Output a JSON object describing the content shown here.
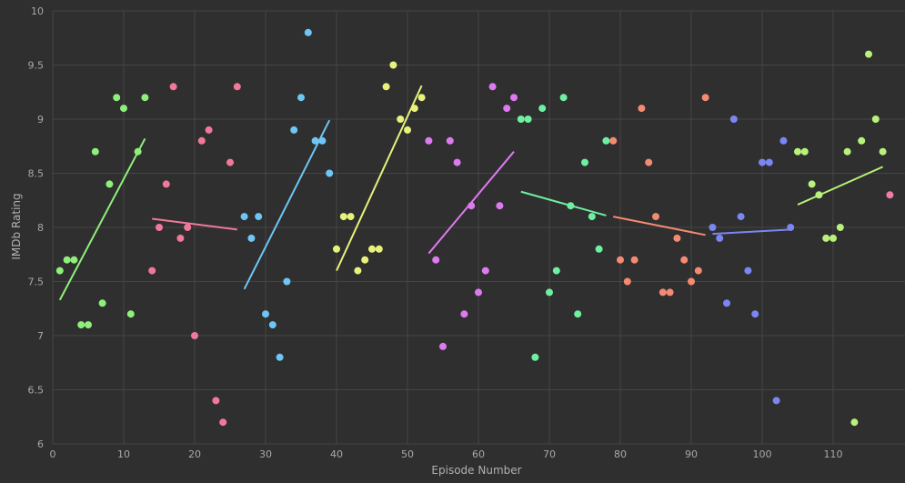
{
  "chart_data": {
    "type": "scatter",
    "xlabel": "Episode Number",
    "ylabel": "IMDb Rating",
    "xlim": [
      0,
      118
    ],
    "ylim": [
      6,
      10
    ],
    "xticks": [
      0,
      10,
      20,
      30,
      40,
      50,
      60,
      70,
      80,
      90,
      100,
      110
    ],
    "yticks": [
      6,
      6.5,
      7,
      7.5,
      8,
      8.5,
      9,
      9.5,
      10
    ],
    "grid": true,
    "legend": "none",
    "series": [
      {
        "color": "#8ef07a",
        "points": [
          [
            1,
            7.6
          ],
          [
            2,
            7.7
          ],
          [
            3,
            7.7
          ],
          [
            4,
            7.1
          ],
          [
            5,
            7.1
          ],
          [
            6,
            8.7
          ],
          [
            7,
            7.3
          ],
          [
            8,
            8.4
          ],
          [
            9,
            9.2
          ],
          [
            10,
            9.1
          ],
          [
            11,
            7.2
          ],
          [
            12,
            8.7
          ],
          [
            13,
            9.2
          ]
        ],
        "trend": [
          [
            1,
            7.33
          ],
          [
            13,
            8.82
          ]
        ]
      },
      {
        "color": "#f2789a",
        "points": [
          [
            14,
            7.6
          ],
          [
            15,
            8.0
          ],
          [
            16,
            8.4
          ],
          [
            17,
            9.3
          ],
          [
            18,
            7.9
          ],
          [
            19,
            8.0
          ],
          [
            20,
            7.0
          ],
          [
            21,
            8.8
          ],
          [
            22,
            8.9
          ],
          [
            23,
            6.4
          ],
          [
            24,
            6.2
          ],
          [
            25,
            8.6
          ],
          [
            26,
            9.3
          ]
        ],
        "trend": [
          [
            14,
            8.08
          ],
          [
            26,
            7.98
          ]
        ]
      },
      {
        "color": "#6ec6f5",
        "points": [
          [
            27,
            8.1
          ],
          [
            28,
            7.9
          ],
          [
            29,
            8.1
          ],
          [
            30,
            7.2
          ],
          [
            31,
            7.1
          ],
          [
            32,
            6.8
          ],
          [
            33,
            7.5
          ],
          [
            34,
            8.9
          ],
          [
            35,
            9.2
          ],
          [
            36,
            9.8
          ],
          [
            37,
            8.8
          ],
          [
            38,
            8.8
          ],
          [
            39,
            8.5
          ]
        ],
        "trend": [
          [
            27,
            7.43
          ],
          [
            39,
            8.99
          ]
        ]
      },
      {
        "color": "#e8f27a",
        "points": [
          [
            40,
            7.8
          ],
          [
            41,
            8.1
          ],
          [
            42,
            8.1
          ],
          [
            43,
            7.6
          ],
          [
            44,
            7.7
          ],
          [
            45,
            7.8
          ],
          [
            46,
            7.8
          ],
          [
            47,
            9.3
          ],
          [
            48,
            9.5
          ],
          [
            49,
            9.0
          ],
          [
            50,
            8.9
          ],
          [
            51,
            9.1
          ],
          [
            52,
            9.2
          ]
        ],
        "trend": [
          [
            40,
            7.6
          ],
          [
            52,
            9.31
          ]
        ]
      },
      {
        "color": "#de7af0",
        "points": [
          [
            53,
            8.8
          ],
          [
            54,
            7.7
          ],
          [
            55,
            6.9
          ],
          [
            56,
            8.8
          ],
          [
            57,
            8.6
          ],
          [
            58,
            7.2
          ],
          [
            59,
            8.2
          ],
          [
            60,
            7.4
          ],
          [
            61,
            7.6
          ],
          [
            62,
            9.3
          ],
          [
            63,
            8.2
          ],
          [
            64,
            9.1
          ],
          [
            65,
            9.2
          ]
        ],
        "trend": [
          [
            53,
            7.76
          ],
          [
            65,
            8.7
          ]
        ]
      },
      {
        "color": "#6ef0a0",
        "points": [
          [
            66,
            9.0
          ],
          [
            67,
            9.0
          ],
          [
            68,
            6.8
          ],
          [
            69,
            9.1
          ],
          [
            70,
            7.4
          ],
          [
            71,
            7.6
          ],
          [
            72,
            9.2
          ],
          [
            73,
            8.2
          ],
          [
            74,
            7.2
          ],
          [
            75,
            8.6
          ],
          [
            76,
            8.1
          ],
          [
            77,
            7.8
          ],
          [
            78,
            8.8
          ]
        ],
        "trend": [
          [
            66,
            8.33
          ],
          [
            78,
            8.11
          ]
        ]
      },
      {
        "color": "#f58a72",
        "points": [
          [
            79,
            8.8
          ],
          [
            80,
            7.7
          ],
          [
            81,
            7.5
          ],
          [
            82,
            7.7
          ],
          [
            83,
            9.1
          ],
          [
            84,
            8.6
          ],
          [
            85,
            8.1
          ],
          [
            86,
            7.4
          ],
          [
            87,
            7.4
          ],
          [
            88,
            7.9
          ],
          [
            89,
            7.7
          ],
          [
            90,
            7.5
          ],
          [
            91,
            7.6
          ],
          [
            92,
            9.2
          ]
        ],
        "trend": [
          [
            79,
            8.1
          ],
          [
            92,
            7.93
          ]
        ]
      },
      {
        "color": "#7a86f2",
        "points": [
          [
            93,
            8.0
          ],
          [
            94,
            7.9
          ],
          [
            95,
            7.3
          ],
          [
            96,
            9.0
          ],
          [
            97,
            8.1
          ],
          [
            98,
            7.6
          ],
          [
            99,
            7.2
          ],
          [
            100,
            8.6
          ],
          [
            101,
            8.6
          ],
          [
            102,
            6.4
          ],
          [
            103,
            8.8
          ],
          [
            104,
            8.0
          ]
        ],
        "trend": [
          [
            93,
            7.94
          ],
          [
            104,
            7.98
          ]
        ]
      },
      {
        "color": "#b8f27a",
        "points": [
          [
            105,
            8.7
          ],
          [
            106,
            8.7
          ],
          [
            107,
            8.4
          ],
          [
            108,
            8.3
          ],
          [
            109,
            7.9
          ],
          [
            110,
            7.9
          ],
          [
            111,
            8.0
          ],
          [
            112,
            8.7
          ],
          [
            113,
            6.2
          ],
          [
            114,
            8.8
          ],
          [
            115,
            9.6
          ],
          [
            116,
            9.0
          ],
          [
            117,
            8.7
          ]
        ],
        "trend": [
          [
            105,
            8.21
          ],
          [
            117,
            8.56
          ]
        ]
      },
      {
        "color": "#f27aa8",
        "points": [
          [
            118,
            8.3
          ]
        ],
        "trend": []
      }
    ]
  }
}
